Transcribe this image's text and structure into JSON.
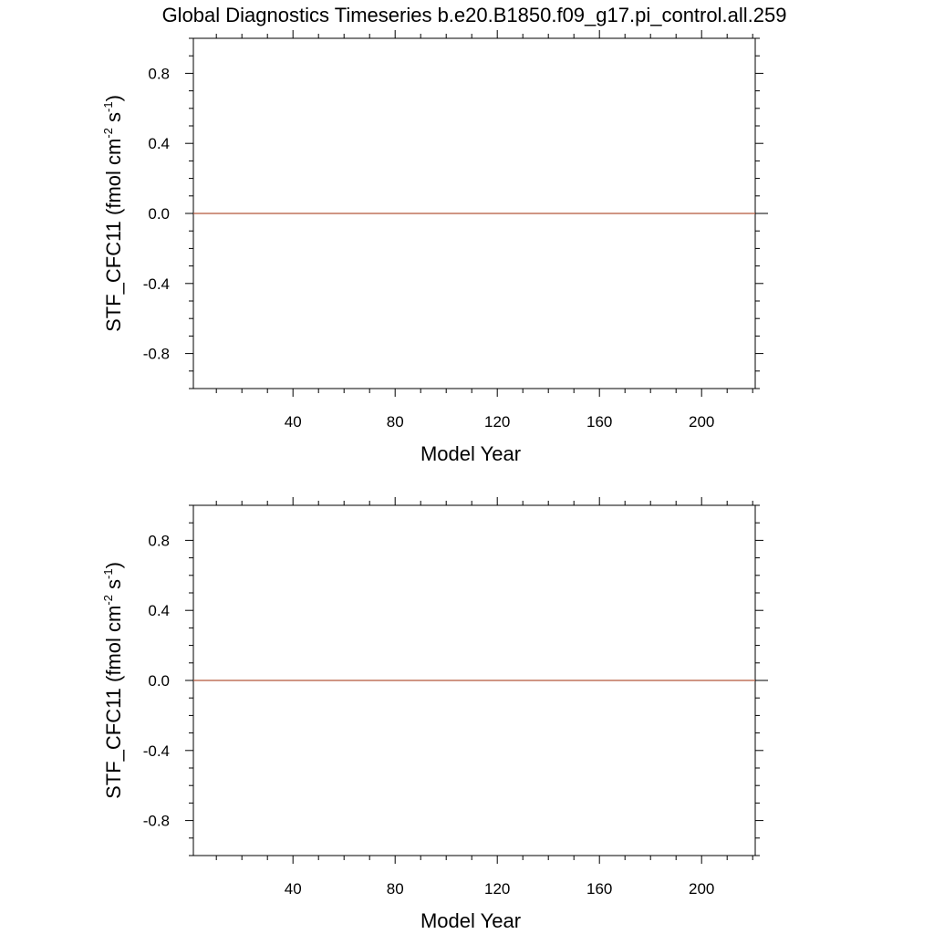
{
  "title": "Global Diagnostics Timeseries b.e20.B1850.f09_g17.pi_control.all.259",
  "colors": {
    "frame": "#000000",
    "series_line": "#b5573a"
  },
  "chart_data": [
    {
      "type": "line",
      "xlabel": "Model Year",
      "ylabel": {
        "base": "STF_CFC11 (fmol cm",
        "sup1": "-2",
        "mid": " s",
        "sup2": "-1",
        "end": ")"
      },
      "xlim": [
        1,
        221
      ],
      "ylim": [
        -1.0,
        1.0
      ],
      "x_ticks": [
        40,
        80,
        120,
        160,
        200
      ],
      "x_tick_labels": [
        "40",
        "80",
        "120",
        "160",
        "200"
      ],
      "y_ticks": [
        0.8,
        0.4,
        0.0,
        -0.4,
        -0.8
      ],
      "y_tick_labels": [
        "0.8",
        "0.4",
        "0.0",
        "-0.4",
        "-0.8"
      ],
      "series": [
        {
          "x": [
            1,
            221
          ],
          "y": [
            0.0,
            0.0
          ]
        }
      ]
    },
    {
      "type": "line",
      "xlabel": "Model Year",
      "ylabel": {
        "base": "STF_CFC11 (fmol cm",
        "sup1": "-2",
        "mid": " s",
        "sup2": "-1",
        "end": ")"
      },
      "xlim": [
        1,
        221
      ],
      "ylim": [
        -1.0,
        1.0
      ],
      "x_ticks": [
        40,
        80,
        120,
        160,
        200
      ],
      "x_tick_labels": [
        "40",
        "80",
        "120",
        "160",
        "200"
      ],
      "y_ticks": [
        0.8,
        0.4,
        0.0,
        -0.4,
        -0.8
      ],
      "y_tick_labels": [
        "0.8",
        "0.4",
        "0.0",
        "-0.4",
        "-0.8"
      ],
      "series": [
        {
          "x": [
            1,
            221
          ],
          "y": [
            0.0,
            0.0
          ]
        }
      ]
    }
  ]
}
